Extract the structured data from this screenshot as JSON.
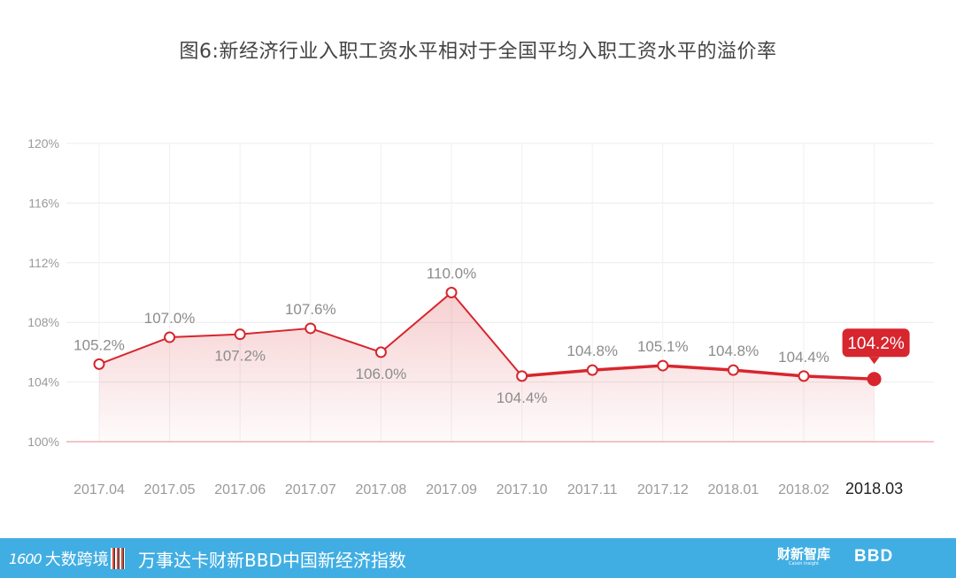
{
  "chart_data": {
    "type": "line",
    "title": "图6:新经济行业入职工资水平相对于全国平均入职工资水平的溢价率",
    "categories": [
      "2017.04",
      "2017.05",
      "2017.06",
      "2017.07",
      "2017.08",
      "2017.09",
      "2017.10",
      "2017.11",
      "2017.12",
      "2018.01",
      "2018.02",
      "2018.03"
    ],
    "series": [
      {
        "values": [
          105.2,
          107.0,
          107.2,
          107.6,
          106.0,
          110.0,
          104.4,
          104.8,
          105.1,
          104.8,
          104.4,
          104.2
        ],
        "labels": [
          "105.2%",
          "107.0%",
          "107.2%",
          "107.6%",
          "106.0%",
          "110.0%",
          "104.4%",
          "104.8%",
          "105.1%",
          "104.8%",
          "104.4%",
          "104.2%"
        ]
      }
    ],
    "yticks": [
      "100%",
      "104%",
      "108%",
      "112%",
      "116%",
      "120%"
    ],
    "ylim": [
      100,
      120
    ],
    "grid": true,
    "highlight_last": true,
    "line_color": "#d7262e"
  },
  "footer": {
    "brand": "大数跨境",
    "title": "万事达卡财新BBD中国新经济指数",
    "partner1": "财新智库",
    "partner1_sub": "Caixin Insight",
    "partner2": "BBD"
  }
}
